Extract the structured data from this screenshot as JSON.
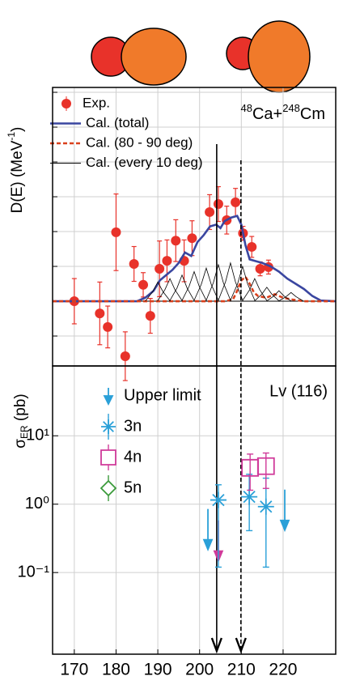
{
  "chart_data": [
    {
      "type": "line",
      "ylabel": {
        "text": "D(E) (MeV",
        "sup": "-1",
        "close": ")"
      },
      "annotation": {
        "sup1": "48",
        "el1": "Ca+",
        "sup2": "248",
        "el2": "Cm"
      },
      "xlim": [
        164.8,
        232.6
      ],
      "ylim": [
        -1.86,
        6.14
      ],
      "yticks": [
        -1,
        0,
        1,
        2,
        3,
        4,
        5,
        6
      ],
      "grid": true,
      "series": [
        {
          "name": "Exp.",
          "style": "points",
          "color": "#e8322a",
          "x": [
            170,
            176.1,
            178,
            180,
            182.2,
            184.3,
            186.5,
            188.2,
            190.4,
            192.2,
            194.3,
            196.3,
            198.2,
            202.4,
            204.5,
            206.5,
            208.6,
            210.4,
            212.5,
            214.5,
            216.5
          ],
          "values": [
            0,
            -0.35,
            -0.74,
            1.98,
            -1.58,
            1.07,
            0.47,
            -0.42,
            0.93,
            1.16,
            1.74,
            1.16,
            1.81,
            2.56,
            2.79,
            2.33,
            2.84,
            1.95,
            1.56,
            0.93,
            0.98
          ],
          "errors": [
            0.65,
            0.9,
            0.6,
            1.1,
            0.7,
            0.5,
            0.35,
            0.5,
            0.8,
            0.6,
            0.6,
            0.6,
            0.5,
            0.5,
            0.5,
            0.4,
            0.4,
            0.2,
            0.3,
            0.2,
            0.2
          ]
        },
        {
          "name": "Cal. (total)",
          "style": "solid",
          "color": "#3a46a0",
          "x": [
            164.8,
            185,
            187,
            189,
            190.5,
            192,
            193.5,
            195,
            196.5,
            198,
            199.5,
            201,
            202.5,
            204,
            205,
            206,
            207.5,
            209,
            210,
            211,
            212,
            213.5,
            215,
            217,
            219,
            221,
            223,
            225,
            227,
            229,
            232.6
          ],
          "values": [
            0,
            0,
            0.1,
            0.3,
            0.6,
            0.75,
            0.9,
            1.1,
            1.4,
            1.3,
            1.7,
            1.9,
            2.15,
            2.2,
            2.1,
            2.3,
            2.4,
            2.45,
            2.2,
            1.6,
            1.2,
            1.15,
            1.1,
            1.0,
            0.85,
            0.65,
            0.5,
            0.35,
            0.15,
            0.02,
            0
          ]
        },
        {
          "name": "Cal. (80 - 90 deg)",
          "style": "dashed",
          "color": "#d9401c",
          "x": [
            164.8,
            206,
            208,
            209,
            210,
            211,
            212,
            213,
            214,
            216,
            218,
            220,
            222,
            225,
            232.6
          ],
          "values": [
            0,
            0,
            0.05,
            0.3,
            0.6,
            0.7,
            0.5,
            0.25,
            0.15,
            0.1,
            0.2,
            0.1,
            0.05,
            0,
            0
          ]
        },
        {
          "name": "Cal. (every 10 deg)",
          "style": "thin",
          "color": "#000000",
          "curves": [
            {
              "x": [
                187,
                188.8,
                190,
                191.2,
                193
              ],
              "values": [
                0,
                0.28,
                0.55,
                0.28,
                0
              ]
            },
            {
              "x": [
                189.9,
                191.7,
                192.9,
                194.1,
                195.9
              ],
              "values": [
                0,
                0.33,
                0.65,
                0.33,
                0
              ]
            },
            {
              "x": [
                192.8,
                194.6,
                195.8,
                197,
                198.8
              ],
              "values": [
                0,
                0.38,
                0.75,
                0.38,
                0
              ]
            },
            {
              "x": [
                195.7,
                197.5,
                198.7,
                199.9,
                201.7
              ],
              "values": [
                0,
                0.43,
                0.85,
                0.43,
                0
              ]
            },
            {
              "x": [
                198.6,
                200.4,
                201.6,
                202.8,
                204.6
              ],
              "values": [
                0,
                0.48,
                0.95,
                0.48,
                0
              ]
            },
            {
              "x": [
                201.5,
                203.3,
                204.5,
                205.7,
                207.5
              ],
              "values": [
                0,
                0.53,
                1.05,
                0.53,
                0
              ]
            },
            {
              "x": [
                204.4,
                206.2,
                207.4,
                208.6,
                210.4
              ],
              "values": [
                0,
                0.55,
                1.1,
                0.55,
                0
              ]
            },
            {
              "x": [
                207.3,
                209.1,
                210.3,
                211.5,
                213.3
              ],
              "values": [
                0,
                0.5,
                1.0,
                0.5,
                0
              ]
            },
            {
              "x": [
                210.2,
                212,
                213.2,
                214.4,
                216.2
              ],
              "values": [
                0,
                0.33,
                0.65,
                0.33,
                0
              ]
            },
            {
              "x": [
                213.1,
                214.9,
                216.1,
                217.3,
                219.1
              ],
              "values": [
                0,
                0.2,
                0.4,
                0.2,
                0
              ]
            },
            {
              "x": [
                216,
                217.8,
                219,
                220.2,
                222
              ],
              "values": [
                0,
                0.15,
                0.3,
                0.15,
                0
              ]
            },
            {
              "x": [
                218.9,
                220.7,
                221.9,
                223.1,
                224.9
              ],
              "values": [
                0,
                0.13,
                0.25,
                0.13,
                0
              ]
            }
          ]
        }
      ]
    },
    {
      "type": "scatter",
      "ylabel": {
        "symbol": "σ",
        "sub": "ER",
        "unit": " (pb)"
      },
      "annotation": "Lv (116)",
      "xlim": [
        164.8,
        232.6
      ],
      "xticks": [
        170,
        180,
        190,
        200,
        210,
        220
      ],
      "yscale": "log",
      "ylim": [
        0.0064,
        105
      ],
      "yticks": [
        {
          "value": 0.1,
          "label": "10⁻¹"
        },
        {
          "value": 1,
          "label": "10⁰"
        },
        {
          "value": 10,
          "label": "10¹"
        }
      ],
      "grid": true,
      "markers": [
        {
          "x": 204.1,
          "style": "solid"
        },
        {
          "x": 209.9,
          "style": "dashed"
        }
      ],
      "series": [
        {
          "name": "Upper limit",
          "marker": "arrow",
          "color": "#2aa0d8",
          "x": [
            202.0,
            204.5,
            220.4
          ],
          "values": [
            0.85,
            0.58,
            1.63
          ],
          "colors": [
            "#2aa0d8",
            "#d03a9a",
            "#2aa0d8"
          ]
        },
        {
          "name": "3n",
          "marker": "star",
          "color": "#2aa0d8",
          "x": [
            204.5,
            211.9,
            215.9
          ],
          "values": [
            1.15,
            1.28,
            0.92
          ],
          "errors_low": [
            1.03,
            0.87,
            0.8
          ],
          "errors_high": [
            0.77,
            1.46,
            1.48
          ]
        },
        {
          "name": "4n",
          "marker": "square",
          "color": "#d03a9a",
          "x": [
            212.1,
            215.9
          ],
          "values": [
            3.4,
            3.6
          ],
          "errors_low": [
            1.8,
            1.9
          ],
          "errors_high": [
            2.0,
            2.0
          ]
        },
        {
          "name": "5n",
          "marker": "diamond",
          "color": "#3a9a3a",
          "x": [],
          "values": []
        }
      ]
    }
  ]
}
